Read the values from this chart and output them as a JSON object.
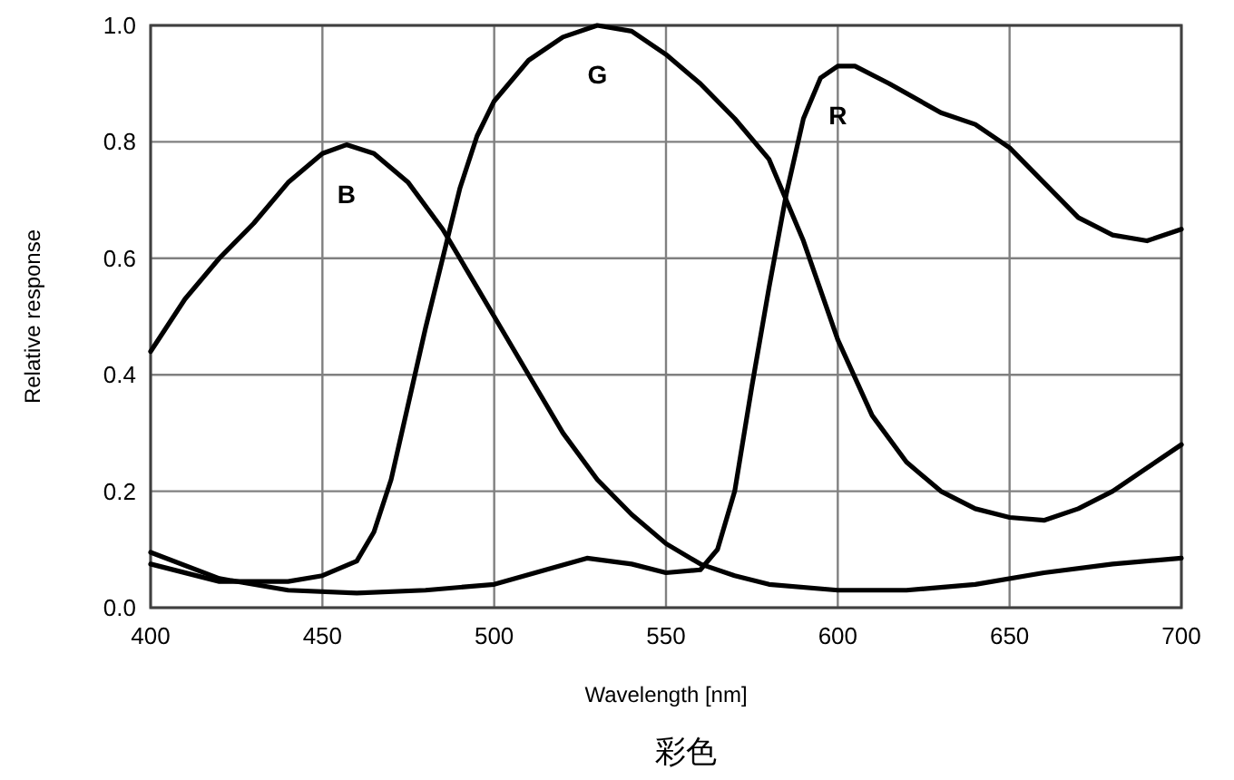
{
  "chart_data": {
    "type": "line",
    "xlabel": "Wavelength [nm]",
    "ylabel": "Relative response",
    "annotations": [
      "彩色"
    ],
    "xlim": [
      400,
      700
    ],
    "xticks": [
      400,
      450,
      500,
      550,
      600,
      650,
      700
    ],
    "ylim": [
      0,
      1
    ],
    "yticks": [
      {
        "value": 0,
        "label": "0.0"
      },
      {
        "value": 0.2,
        "label": "0.2"
      },
      {
        "value": 0.4,
        "label": "0.4"
      },
      {
        "value": 0.6,
        "label": "0.6"
      },
      {
        "value": 0.8,
        "label": "0.8"
      },
      {
        "value": 1,
        "label": "1.0"
      }
    ],
    "grid": true,
    "legend": false,
    "marker": "none",
    "line_style": "solid",
    "series": [
      {
        "name": "B",
        "color": "#000000",
        "x": [
          400,
          410,
          420,
          430,
          440,
          450,
          457,
          465,
          475,
          485,
          495,
          500,
          510,
          520,
          530,
          540,
          550,
          560,
          570,
          580,
          600,
          620,
          640,
          660,
          680,
          700
        ],
        "values": [
          0.44,
          0.53,
          0.6,
          0.66,
          0.73,
          0.78,
          0.795,
          0.78,
          0.73,
          0.65,
          0.55,
          0.5,
          0.4,
          0.3,
          0.22,
          0.16,
          0.11,
          0.075,
          0.055,
          0.04,
          0.03,
          0.03,
          0.04,
          0.06,
          0.075,
          0.085
        ]
      },
      {
        "name": "G",
        "color": "#000000",
        "x": [
          400,
          420,
          440,
          450,
          460,
          465,
          470,
          475,
          480,
          485,
          490,
          495,
          500,
          510,
          520,
          530,
          540,
          550,
          560,
          570,
          580,
          590,
          600,
          610,
          620,
          630,
          640,
          650,
          660,
          670,
          680,
          690,
          700
        ],
        "values": [
          0.075,
          0.045,
          0.045,
          0.055,
          0.08,
          0.13,
          0.22,
          0.35,
          0.48,
          0.6,
          0.72,
          0.81,
          0.87,
          0.94,
          0.98,
          1.0,
          0.99,
          0.95,
          0.9,
          0.84,
          0.77,
          0.63,
          0.46,
          0.33,
          0.25,
          0.2,
          0.17,
          0.155,
          0.15,
          0.17,
          0.2,
          0.24,
          0.28
        ]
      },
      {
        "name": "R",
        "color": "#000000",
        "x": [
          400,
          420,
          440,
          460,
          480,
          500,
          515,
          527,
          540,
          550,
          560,
          565,
          570,
          575,
          580,
          585,
          590,
          595,
          600,
          605,
          615,
          630,
          640,
          650,
          660,
          670,
          680,
          690,
          700
        ],
        "values": [
          0.095,
          0.05,
          0.03,
          0.025,
          0.03,
          0.04,
          0.065,
          0.085,
          0.075,
          0.06,
          0.065,
          0.1,
          0.2,
          0.38,
          0.55,
          0.71,
          0.84,
          0.91,
          0.93,
          0.93,
          0.9,
          0.85,
          0.83,
          0.79,
          0.73,
          0.67,
          0.64,
          0.63,
          0.65
        ]
      }
    ]
  }
}
